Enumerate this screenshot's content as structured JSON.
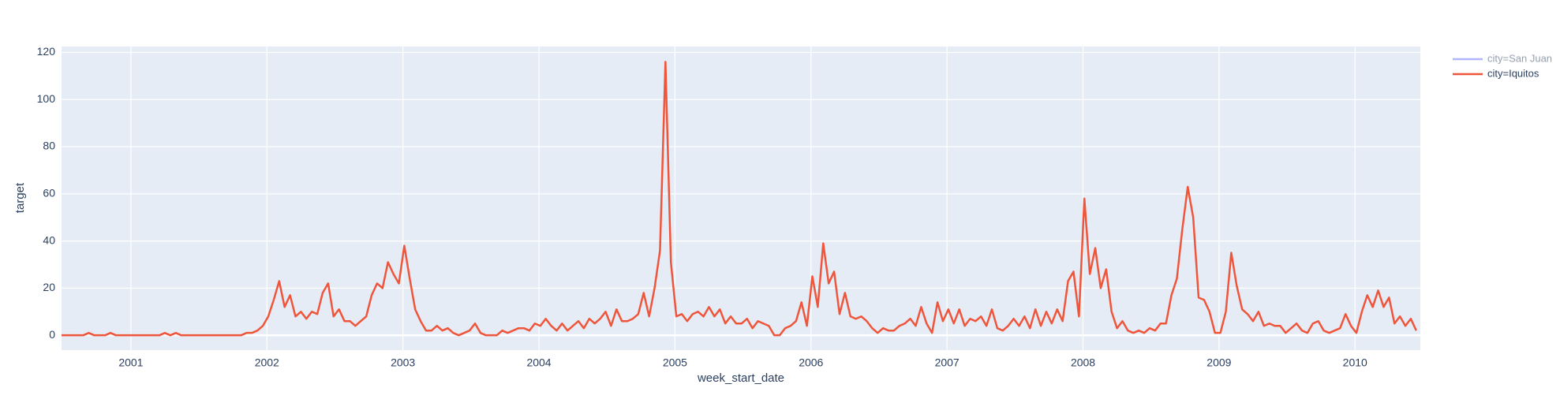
{
  "chart_data": {
    "type": "line",
    "x_label": "week_start_date",
    "y_label": "target",
    "legend": "right",
    "grid": true,
    "xlim": [
      2000.49,
      2010.48
    ],
    "xticks": [
      2001,
      2002,
      2003,
      2004,
      2005,
      2006,
      2007,
      2008,
      2009,
      2010
    ],
    "ylim": [
      -6.3,
      122.5
    ],
    "yticks": [
      0,
      20,
      40,
      60,
      80,
      100,
      120
    ],
    "x": [
      2000.49,
      2000.53,
      2000.57,
      2000.61,
      2000.65,
      2000.69,
      2000.73,
      2000.77,
      2000.81,
      2000.85,
      2000.89,
      2000.93,
      2000.97,
      2001.01,
      2001.05,
      2001.09,
      2001.13,
      2001.17,
      2001.21,
      2001.25,
      2001.29,
      2001.33,
      2001.37,
      2001.41,
      2001.45,
      2001.49,
      2001.53,
      2001.57,
      2001.61,
      2001.65,
      2001.69,
      2001.73,
      2001.77,
      2001.81,
      2001.85,
      2001.89,
      2001.93,
      2001.97,
      2002.01,
      2002.05,
      2002.09,
      2002.13,
      2002.17,
      2002.21,
      2002.25,
      2002.29,
      2002.33,
      2002.37,
      2002.41,
      2002.45,
      2002.49,
      2002.53,
      2002.57,
      2002.61,
      2002.65,
      2002.69,
      2002.73,
      2002.77,
      2002.81,
      2002.85,
      2002.89,
      2002.93,
      2002.97,
      2003.01,
      2003.05,
      2003.09,
      2003.13,
      2003.17,
      2003.21,
      2003.25,
      2003.29,
      2003.33,
      2003.37,
      2003.41,
      2003.45,
      2003.49,
      2003.53,
      2003.57,
      2003.61,
      2003.65,
      2003.69,
      2003.73,
      2003.77,
      2003.81,
      2003.85,
      2003.89,
      2003.93,
      2003.97,
      2004.01,
      2004.05,
      2004.09,
      2004.13,
      2004.17,
      2004.21,
      2004.25,
      2004.29,
      2004.33,
      2004.37,
      2004.41,
      2004.45,
      2004.49,
      2004.53,
      2004.57,
      2004.61,
      2004.65,
      2004.69,
      2004.73,
      2004.77,
      2004.81,
      2004.85,
      2004.89,
      2004.93,
      2004.97,
      2005.01,
      2005.05,
      2005.09,
      2005.13,
      2005.17,
      2005.21,
      2005.25,
      2005.29,
      2005.33,
      2005.37,
      2005.41,
      2005.45,
      2005.49,
      2005.53,
      2005.57,
      2005.61,
      2005.65,
      2005.69,
      2005.73,
      2005.77,
      2005.81,
      2005.85,
      2005.89,
      2005.93,
      2005.97,
      2006.01,
      2006.05,
      2006.09,
      2006.13,
      2006.17,
      2006.21,
      2006.25,
      2006.29,
      2006.33,
      2006.37,
      2006.41,
      2006.45,
      2006.49,
      2006.53,
      2006.57,
      2006.61,
      2006.65,
      2006.69,
      2006.73,
      2006.77,
      2006.81,
      2006.85,
      2006.89,
      2006.93,
      2006.97,
      2007.01,
      2007.05,
      2007.09,
      2007.13,
      2007.17,
      2007.21,
      2007.25,
      2007.29,
      2007.33,
      2007.37,
      2007.41,
      2007.45,
      2007.49,
      2007.53,
      2007.57,
      2007.61,
      2007.65,
      2007.69,
      2007.73,
      2007.77,
      2007.81,
      2007.85,
      2007.89,
      2007.93,
      2007.97,
      2008.01,
      2008.05,
      2008.09,
      2008.13,
      2008.17,
      2008.21,
      2008.25,
      2008.29,
      2008.33,
      2008.37,
      2008.41,
      2008.45,
      2008.49,
      2008.53,
      2008.57,
      2008.61,
      2008.65,
      2008.69,
      2008.73,
      2008.77,
      2008.81,
      2008.85,
      2008.89,
      2008.93,
      2008.97,
      2009.01,
      2009.05,
      2009.09,
      2009.13,
      2009.17,
      2009.21,
      2009.25,
      2009.29,
      2009.33,
      2009.37,
      2009.41,
      2009.45,
      2009.49,
      2009.53,
      2009.57,
      2009.61,
      2009.65,
      2009.69,
      2009.73,
      2009.77,
      2009.81,
      2009.85,
      2009.89,
      2009.93,
      2009.97,
      2010.01,
      2010.05,
      2010.09,
      2010.13,
      2010.17,
      2010.21,
      2010.25,
      2010.29,
      2010.33,
      2010.37,
      2010.41,
      2010.45
    ],
    "series": [
      {
        "name": "city=San Juan",
        "color": "#636efa",
        "visible": "legendonly"
      },
      {
        "name": "city=Iquitos",
        "color": "#ef553b",
        "values": [
          0,
          0,
          0,
          0,
          0,
          1,
          0,
          0,
          0,
          1,
          0,
          0,
          0,
          0,
          0,
          0,
          0,
          0,
          0,
          1,
          0,
          1,
          0,
          0,
          0,
          0,
          0,
          0,
          0,
          0,
          0,
          0,
          0,
          0,
          1,
          1,
          2,
          4,
          8,
          15,
          23,
          12,
          17,
          8,
          10,
          7,
          10,
          9,
          18,
          22,
          8,
          11,
          6,
          6,
          4,
          6,
          8,
          17,
          22,
          20,
          31,
          26,
          22,
          38,
          24,
          11,
          6,
          2,
          2,
          4,
          2,
          3,
          1,
          0,
          1,
          2,
          5,
          1,
          0,
          0,
          0,
          2,
          1,
          2,
          3,
          3,
          2,
          5,
          4,
          7,
          4,
          2,
          5,
          2,
          4,
          6,
          3,
          7,
          5,
          7,
          10,
          4,
          11,
          6,
          6,
          7,
          9,
          18,
          8,
          20,
          36,
          116,
          31,
          8,
          9,
          6,
          9,
          10,
          8,
          12,
          8,
          11,
          5,
          8,
          5,
          5,
          7,
          3,
          6,
          5,
          4,
          0,
          0,
          3,
          4,
          6,
          14,
          4,
          25,
          12,
          39,
          22,
          27,
          9,
          18,
          8,
          7,
          8,
          6,
          3,
          1,
          3,
          2,
          2,
          4,
          5,
          7,
          4,
          12,
          5,
          1,
          14,
          6,
          11,
          5,
          11,
          4,
          7,
          6,
          8,
          4,
          11,
          3,
          2,
          4,
          7,
          4,
          8,
          3,
          11,
          4,
          10,
          5,
          11,
          6,
          23,
          27,
          8,
          58,
          26,
          37,
          20,
          28,
          10,
          3,
          6,
          2,
          1,
          2,
          1,
          3,
          2,
          5,
          5,
          17,
          24,
          45,
          63,
          50,
          16,
          15,
          10,
          1,
          1,
          10,
          35,
          21,
          11,
          9,
          6,
          10,
          4,
          5,
          4,
          4,
          1,
          3,
          5,
          2,
          1,
          5,
          6,
          2,
          1,
          2,
          3,
          9,
          4,
          1,
          10,
          17,
          12,
          19,
          12,
          16,
          5,
          8,
          4,
          7,
          2
        ]
      }
    ]
  }
}
